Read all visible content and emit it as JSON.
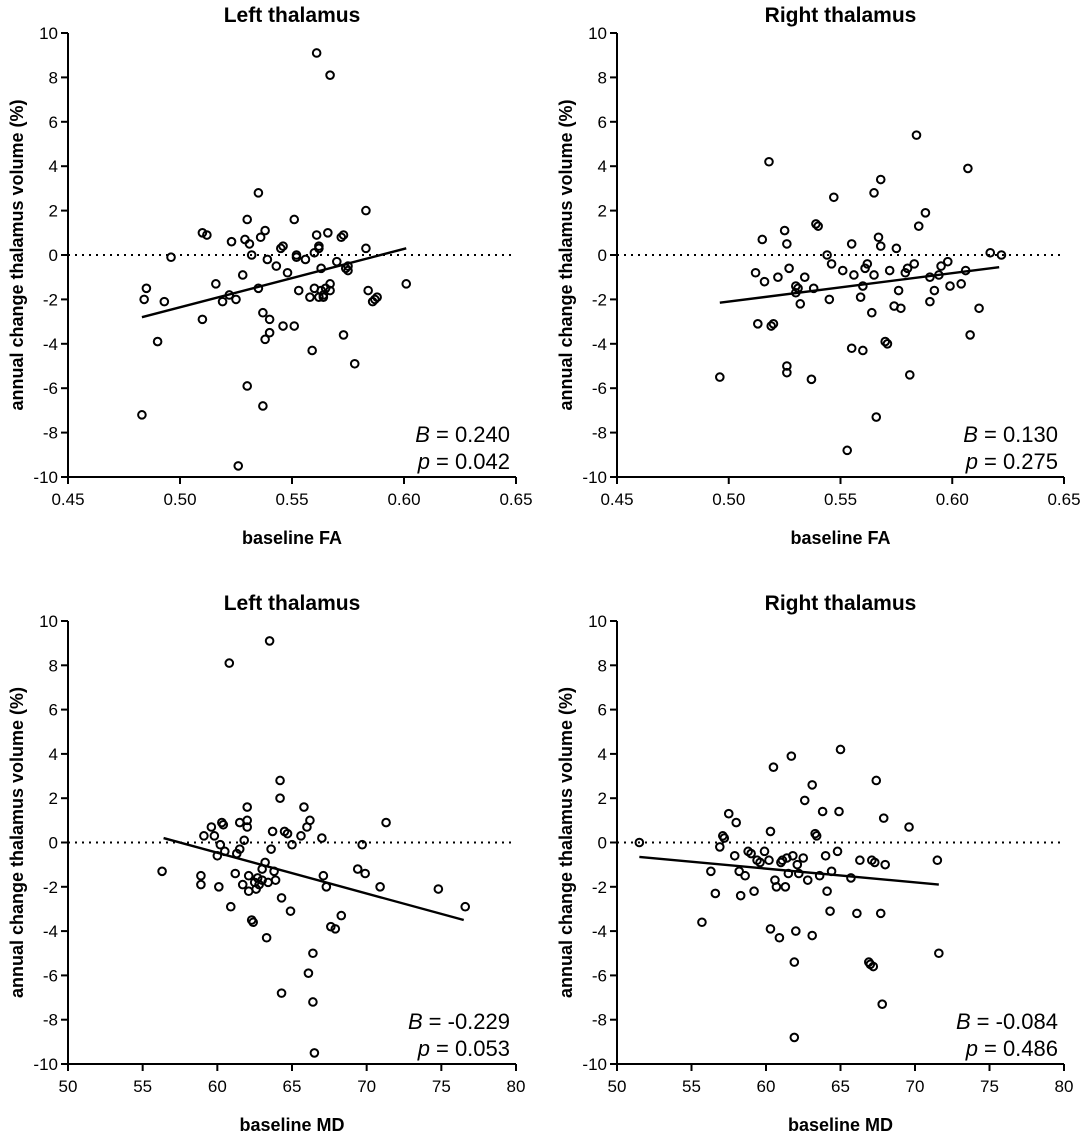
{
  "chart_data": [
    {
      "type": "scatter",
      "panel": "top-left",
      "title": "Left thalamus",
      "xlabel": "baseline FA",
      "ylabel": "annual change thalamus volume (%)",
      "xlim": [
        0.45,
        0.65
      ],
      "ylim": [
        -10,
        10
      ],
      "xticks": [
        "0.45",
        "0.50",
        "0.55",
        "0.60",
        "0.65"
      ],
      "yticks": [
        "10",
        "8",
        "6",
        "4",
        "2",
        "0",
        "-2",
        "-4",
        "-6",
        "-8",
        "-10"
      ],
      "xtick_values": [
        0.45,
        0.5,
        0.55,
        0.6,
        0.65
      ],
      "ytick_values": [
        10,
        8,
        6,
        4,
        2,
        0,
        -2,
        -4,
        -6,
        -8,
        -10
      ],
      "reference_line_y": 0,
      "fit_line": {
        "x": [
          0.483,
          0.601
        ],
        "y": [
          -2.8,
          0.3
        ]
      },
      "stat_B_label": "B",
      "stat_B_value": "= 0.240",
      "stat_p_label": "p",
      "stat_p_value": "= 0.042",
      "points": [
        [
          0.483,
          -7.2
        ],
        [
          0.484,
          -2.0
        ],
        [
          0.485,
          -1.5
        ],
        [
          0.49,
          -3.9
        ],
        [
          0.493,
          -2.1
        ],
        [
          0.496,
          -0.1
        ],
        [
          0.51,
          1.0
        ],
        [
          0.512,
          0.9
        ],
        [
          0.51,
          -2.9
        ],
        [
          0.516,
          -1.3
        ],
        [
          0.519,
          -2.1
        ],
        [
          0.522,
          -1.8
        ],
        [
          0.523,
          0.6
        ],
        [
          0.525,
          -2.0
        ],
        [
          0.526,
          -9.5
        ],
        [
          0.528,
          -0.9
        ],
        [
          0.529,
          0.7
        ],
        [
          0.53,
          1.6
        ],
        [
          0.531,
          0.5
        ],
        [
          0.53,
          -5.9
        ],
        [
          0.532,
          0.0
        ],
        [
          0.535,
          2.8
        ],
        [
          0.535,
          -1.5
        ],
        [
          0.536,
          0.8
        ],
        [
          0.537,
          -2.6
        ],
        [
          0.537,
          -6.8
        ],
        [
          0.538,
          1.1
        ],
        [
          0.538,
          -3.8
        ],
        [
          0.539,
          -0.2
        ],
        [
          0.54,
          -3.5
        ],
        [
          0.54,
          -2.9
        ],
        [
          0.543,
          -0.5
        ],
        [
          0.545,
          0.3
        ],
        [
          0.546,
          0.4
        ],
        [
          0.546,
          -3.2
        ],
        [
          0.548,
          -0.8
        ],
        [
          0.551,
          1.6
        ],
        [
          0.551,
          -3.2
        ],
        [
          0.552,
          0.0
        ],
        [
          0.552,
          -0.1
        ],
        [
          0.553,
          -1.6
        ],
        [
          0.556,
          -0.2
        ],
        [
          0.558,
          -1.9
        ],
        [
          0.559,
          -4.3
        ],
        [
          0.56,
          0.1
        ],
        [
          0.56,
          -1.5
        ],
        [
          0.561,
          0.9
        ],
        [
          0.562,
          0.4
        ],
        [
          0.562,
          0.3
        ],
        [
          0.562,
          -1.9
        ],
        [
          0.563,
          -1.6
        ],
        [
          0.563,
          -0.6
        ],
        [
          0.564,
          -1.8
        ],
        [
          0.564,
          -1.9
        ],
        [
          0.565,
          -1.5
        ],
        [
          0.566,
          1.0
        ],
        [
          0.567,
          -1.3
        ],
        [
          0.567,
          -1.6
        ],
        [
          0.57,
          -0.3
        ],
        [
          0.572,
          0.8
        ],
        [
          0.573,
          0.9
        ],
        [
          0.573,
          -3.6
        ],
        [
          0.574,
          -0.6
        ],
        [
          0.575,
          -0.5
        ],
        [
          0.575,
          -0.7
        ],
        [
          0.578,
          -4.9
        ],
        [
          0.561,
          9.1
        ],
        [
          0.567,
          8.1
        ],
        [
          0.583,
          2.0
        ],
        [
          0.583,
          0.3
        ],
        [
          0.584,
          -1.6
        ],
        [
          0.586,
          -2.1
        ],
        [
          0.587,
          -2.0
        ],
        [
          0.588,
          -1.9
        ],
        [
          0.601,
          -1.3
        ]
      ]
    },
    {
      "type": "scatter",
      "panel": "top-right",
      "title": "Right thalamus",
      "xlabel": "baseline FA",
      "ylabel": "annual change thalamus volume (%)",
      "xlim": [
        0.45,
        0.65
      ],
      "ylim": [
        -10,
        10
      ],
      "xticks": [
        "0.45",
        "0.50",
        "0.55",
        "0.60",
        "0.65"
      ],
      "yticks": [
        "10",
        "8",
        "6",
        "4",
        "2",
        "0",
        "-2",
        "-4",
        "-6",
        "-8",
        "-10"
      ],
      "xtick_values": [
        0.45,
        0.5,
        0.55,
        0.6,
        0.65
      ],
      "ytick_values": [
        10,
        8,
        6,
        4,
        2,
        0,
        -2,
        -4,
        -6,
        -8,
        -10
      ],
      "reference_line_y": 0,
      "fit_line": {
        "x": [
          0.496,
          0.621
        ],
        "y": [
          -2.15,
          -0.55
        ]
      },
      "stat_B_label": "B",
      "stat_B_value": "= 0.130",
      "stat_p_label": "p",
      "stat_p_value": "= 0.275",
      "points": [
        [
          0.496,
          -5.5
        ],
        [
          0.512,
          -0.8
        ],
        [
          0.513,
          -3.1
        ],
        [
          0.515,
          0.7
        ],
        [
          0.516,
          -1.2
        ],
        [
          0.518,
          4.2
        ],
        [
          0.519,
          -3.2
        ],
        [
          0.52,
          -3.1
        ],
        [
          0.522,
          -1.0
        ],
        [
          0.525,
          1.1
        ],
        [
          0.526,
          0.5
        ],
        [
          0.526,
          -5.0
        ],
        [
          0.526,
          -5.3
        ],
        [
          0.527,
          -0.6
        ],
        [
          0.53,
          -1.7
        ],
        [
          0.53,
          -1.4
        ],
        [
          0.531,
          -1.5
        ],
        [
          0.532,
          -2.2
        ],
        [
          0.534,
          -1.0
        ],
        [
          0.537,
          -5.6
        ],
        [
          0.538,
          -1.5
        ],
        [
          0.539,
          1.4
        ],
        [
          0.54,
          1.3
        ],
        [
          0.544,
          0.0
        ],
        [
          0.545,
          -2.0
        ],
        [
          0.546,
          -0.4
        ],
        [
          0.547,
          2.6
        ],
        [
          0.551,
          -0.7
        ],
        [
          0.553,
          -8.8
        ],
        [
          0.555,
          -4.2
        ],
        [
          0.555,
          0.5
        ],
        [
          0.556,
          -0.9
        ],
        [
          0.559,
          -1.9
        ],
        [
          0.56,
          -4.3
        ],
        [
          0.56,
          -1.4
        ],
        [
          0.561,
          -0.6
        ],
        [
          0.562,
          -0.4
        ],
        [
          0.564,
          -2.6
        ],
        [
          0.565,
          2.8
        ],
        [
          0.565,
          -0.9
        ],
        [
          0.566,
          -7.3
        ],
        [
          0.567,
          0.8
        ],
        [
          0.568,
          3.4
        ],
        [
          0.568,
          0.4
        ],
        [
          0.57,
          -3.9
        ],
        [
          0.571,
          -4.0
        ],
        [
          0.572,
          -0.7
        ],
        [
          0.574,
          -2.3
        ],
        [
          0.575,
          0.3
        ],
        [
          0.576,
          -1.6
        ],
        [
          0.577,
          -2.4
        ],
        [
          0.579,
          -0.8
        ],
        [
          0.58,
          -0.6
        ],
        [
          0.581,
          -5.4
        ],
        [
          0.583,
          -0.4
        ],
        [
          0.584,
          5.4
        ],
        [
          0.585,
          1.3
        ],
        [
          0.588,
          1.9
        ],
        [
          0.59,
          -1.0
        ],
        [
          0.59,
          -2.1
        ],
        [
          0.592,
          -1.6
        ],
        [
          0.594,
          -0.9
        ],
        [
          0.595,
          -0.5
        ],
        [
          0.598,
          -0.3
        ],
        [
          0.599,
          -1.4
        ],
        [
          0.604,
          -1.3
        ],
        [
          0.606,
          -0.7
        ],
        [
          0.607,
          3.9
        ],
        [
          0.608,
          -3.6
        ],
        [
          0.612,
          -2.4
        ],
        [
          0.617,
          0.1
        ],
        [
          0.622,
          0.0
        ]
      ]
    },
    {
      "type": "scatter",
      "panel": "bottom-left",
      "title": "Left thalamus",
      "xlabel": "baseline MD",
      "ylabel": "annual change thalamus volume (%)",
      "xlim": [
        50,
        80
      ],
      "ylim": [
        -10,
        10
      ],
      "xticks": [
        "50",
        "55",
        "60",
        "65",
        "70",
        "75",
        "80"
      ],
      "yticks": [
        "10",
        "8",
        "6",
        "4",
        "2",
        "0",
        "-2",
        "-4",
        "-6",
        "-8",
        "-10"
      ],
      "xtick_values": [
        50,
        55,
        60,
        65,
        70,
        75,
        80
      ],
      "ytick_values": [
        10,
        8,
        6,
        4,
        2,
        0,
        -2,
        -4,
        -6,
        -8,
        -10
      ],
      "reference_line_y": 0,
      "fit_line": {
        "x": [
          56.4,
          76.5
        ],
        "y": [
          0.2,
          -3.5
        ]
      },
      "stat_B_label": "B",
      "stat_B_value": "= -0.229",
      "stat_p_label": "p",
      "stat_p_value": "= 0.053",
      "points": [
        [
          56.3,
          -1.3
        ],
        [
          58.9,
          -1.5
        ],
        [
          58.9,
          -1.9
        ],
        [
          59.1,
          0.3
        ],
        [
          59.6,
          0.7
        ],
        [
          59.8,
          0.3
        ],
        [
          60.0,
          -0.6
        ],
        [
          60.1,
          -2.0
        ],
        [
          60.2,
          -0.1
        ],
        [
          60.3,
          0.9
        ],
        [
          60.4,
          0.8
        ],
        [
          60.5,
          -0.4
        ],
        [
          60.8,
          8.1
        ],
        [
          60.9,
          -2.9
        ],
        [
          61.2,
          -1.4
        ],
        [
          61.3,
          -0.5
        ],
        [
          61.5,
          -0.3
        ],
        [
          61.5,
          0.9
        ],
        [
          61.7,
          -1.9
        ],
        [
          61.8,
          0.1
        ],
        [
          62.0,
          1.6
        ],
        [
          62.0,
          1.0
        ],
        [
          62.0,
          0.7
        ],
        [
          62.1,
          -2.2
        ],
        [
          62.1,
          -1.5
        ],
        [
          62.3,
          -3.5
        ],
        [
          62.4,
          -3.6
        ],
        [
          62.5,
          -1.8
        ],
        [
          62.6,
          -2.1
        ],
        [
          62.7,
          -1.6
        ],
        [
          62.8,
          -1.9
        ],
        [
          63.0,
          -1.7
        ],
        [
          63.0,
          -1.2
        ],
        [
          63.2,
          -0.9
        ],
        [
          63.3,
          -4.3
        ],
        [
          63.4,
          -1.8
        ],
        [
          63.5,
          9.1
        ],
        [
          63.6,
          -0.3
        ],
        [
          63.7,
          0.5
        ],
        [
          63.8,
          -1.3
        ],
        [
          63.9,
          -1.7
        ],
        [
          64.2,
          2.8
        ],
        [
          64.2,
          2.0
        ],
        [
          64.3,
          -2.5
        ],
        [
          64.3,
          -6.8
        ],
        [
          64.5,
          0.5
        ],
        [
          64.7,
          0.4
        ],
        [
          64.9,
          -3.1
        ],
        [
          65.0,
          -0.1
        ],
        [
          65.6,
          0.3
        ],
        [
          65.8,
          1.6
        ],
        [
          66.0,
          0.7
        ],
        [
          66.1,
          -5.9
        ],
        [
          66.2,
          1.0
        ],
        [
          66.4,
          -5.0
        ],
        [
          66.4,
          -7.2
        ],
        [
          66.5,
          -9.5
        ],
        [
          67.0,
          0.2
        ],
        [
          67.1,
          -1.5
        ],
        [
          67.3,
          -2.0
        ],
        [
          67.6,
          -3.8
        ],
        [
          67.9,
          -3.9
        ],
        [
          68.3,
          -3.3
        ],
        [
          69.4,
          -1.2
        ],
        [
          69.7,
          -0.1
        ],
        [
          69.9,
          -1.4
        ],
        [
          70.9,
          -2.0
        ],
        [
          71.3,
          0.9
        ],
        [
          74.8,
          -2.1
        ],
        [
          76.6,
          -2.9
        ]
      ]
    },
    {
      "type": "scatter",
      "panel": "bottom-right",
      "title": "Right thalamus",
      "xlabel": "baseline MD",
      "ylabel": "annual change thalamus volume (%)",
      "xlim": [
        50,
        80
      ],
      "ylim": [
        -10,
        10
      ],
      "xticks": [
        "50",
        "55",
        "60",
        "65",
        "70",
        "75",
        "80"
      ],
      "yticks": [
        "10",
        "8",
        "6",
        "4",
        "2",
        "0",
        "-2",
        "-4",
        "-6",
        "-8",
        "-10"
      ],
      "xtick_values": [
        50,
        55,
        60,
        65,
        70,
        75,
        80
      ],
      "ytick_values": [
        10,
        8,
        6,
        4,
        2,
        0,
        -2,
        -4,
        -6,
        -8,
        -10
      ],
      "reference_line_y": 0,
      "fit_line": {
        "x": [
          51.5,
          71.6
        ],
        "y": [
          -0.65,
          -1.9
        ]
      },
      "stat_B_label": "B",
      "stat_B_value": "= -0.084",
      "stat_p_label": "p",
      "stat_p_value": "= 0.486",
      "points": [
        [
          51.5,
          0.0
        ],
        [
          55.7,
          -3.6
        ],
        [
          56.3,
          -1.3
        ],
        [
          56.6,
          -2.3
        ],
        [
          56.9,
          -0.2
        ],
        [
          57.1,
          0.3
        ],
        [
          57.2,
          0.2
        ],
        [
          57.5,
          1.3
        ],
        [
          57.9,
          -0.6
        ],
        [
          58.0,
          0.9
        ],
        [
          58.2,
          -1.3
        ],
        [
          58.3,
          -2.4
        ],
        [
          58.6,
          -1.5
        ],
        [
          58.8,
          -0.4
        ],
        [
          59.0,
          -0.5
        ],
        [
          59.2,
          -2.2
        ],
        [
          59.4,
          -0.8
        ],
        [
          59.6,
          -0.9
        ],
        [
          59.9,
          -0.4
        ],
        [
          60.2,
          -0.8
        ],
        [
          60.3,
          0.5
        ],
        [
          60.3,
          -3.9
        ],
        [
          60.5,
          3.4
        ],
        [
          60.6,
          -1.7
        ],
        [
          60.7,
          -2.0
        ],
        [
          60.9,
          -4.3
        ],
        [
          61.0,
          -0.9
        ],
        [
          61.1,
          -0.8
        ],
        [
          61.3,
          -2.0
        ],
        [
          61.4,
          -0.7
        ],
        [
          61.5,
          -1.4
        ],
        [
          61.7,
          3.9
        ],
        [
          61.8,
          -0.6
        ],
        [
          61.9,
          -8.8
        ],
        [
          61.9,
          -5.4
        ],
        [
          62.0,
          -4.0
        ],
        [
          62.1,
          -1.0
        ],
        [
          62.2,
          -1.4
        ],
        [
          62.5,
          -0.7
        ],
        [
          62.6,
          1.9
        ],
        [
          62.8,
          -1.7
        ],
        [
          63.1,
          2.6
        ],
        [
          63.1,
          -4.2
        ],
        [
          63.3,
          0.4
        ],
        [
          63.4,
          0.3
        ],
        [
          63.6,
          -1.5
        ],
        [
          63.8,
          1.4
        ],
        [
          64.0,
          -0.6
        ],
        [
          64.1,
          -2.2
        ],
        [
          64.3,
          -3.1
        ],
        [
          64.4,
          -1.3
        ],
        [
          64.8,
          -0.4
        ],
        [
          64.9,
          1.4
        ],
        [
          65.0,
          4.2
        ],
        [
          65.7,
          -1.6
        ],
        [
          66.1,
          -3.2
        ],
        [
          66.3,
          -0.8
        ],
        [
          66.9,
          -5.4
        ],
        [
          67.0,
          -5.5
        ],
        [
          67.1,
          -0.8
        ],
        [
          67.2,
          -5.6
        ],
        [
          67.3,
          -0.9
        ],
        [
          67.4,
          2.8
        ],
        [
          67.7,
          -3.2
        ],
        [
          67.8,
          -7.3
        ],
        [
          67.9,
          1.1
        ],
        [
          68.0,
          -1.0
        ],
        [
          69.6,
          0.7
        ],
        [
          71.5,
          -0.8
        ],
        [
          71.6,
          -5.0
        ]
      ]
    }
  ]
}
